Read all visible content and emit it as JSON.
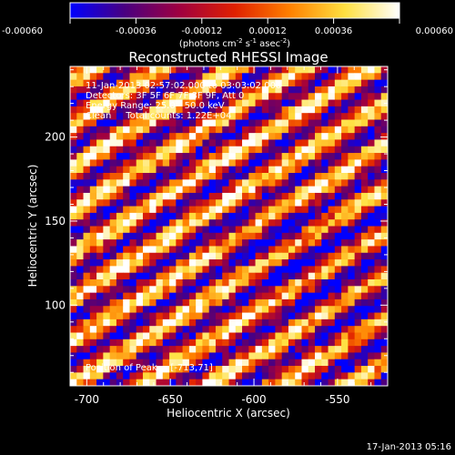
{
  "chart_data": {
    "type": "heatmap",
    "title": "Reconstructed RHESSI Image",
    "xlabel": "Heliocentric X (arcsec)",
    "ylabel": "Heliocentric Y (arcsec)",
    "xlim": [
      -710,
      -520
    ],
    "ylim": [
      52,
      242
    ],
    "xticks": [
      -700,
      -650,
      -600,
      -550
    ],
    "yticks": [
      100,
      150,
      200
    ],
    "colorbar": {
      "min": -0.0006,
      "max": 0.0006,
      "tick_values": [
        -0.0006,
        -0.00036,
        -0.00012,
        0.00012,
        0.00036,
        0.0006
      ],
      "tick_labels": [
        "-0.00060",
        "-0.00036",
        "-0.00012",
        "0.00012",
        "0.00036",
        "0.00060"
      ],
      "units_text": "(photons cm",
      "units_exp1": "-2",
      "units_mid": " s",
      "units_exp2": "-1",
      "units_mid2": " asec",
      "units_exp3": "-2",
      "units_end": ")",
      "colors": [
        "#0000ff",
        "#4a0080",
        "#a00040",
        "#e02000",
        "#ff8000",
        "#ffe040",
        "#ffffff"
      ]
    },
    "info_lines": [
      "11-Jan-2013 02:57:02.000 to 03:03:02.000",
      "Detectors: 3F 5F 6F 7F 8F 9F, Att 0",
      "Energy Range: 25.0 - 50.0 keV",
      "Clean     Total counts: 1.22E+04"
    ],
    "peak_label": "Position of Peak = [-713,71]",
    "footer_date": "17-Jan-2013 05:16",
    "pattern": {
      "grid_size": 48,
      "stripe_period": 6.5,
      "stripe_slope": 0.62,
      "noise": 0.22
    }
  }
}
